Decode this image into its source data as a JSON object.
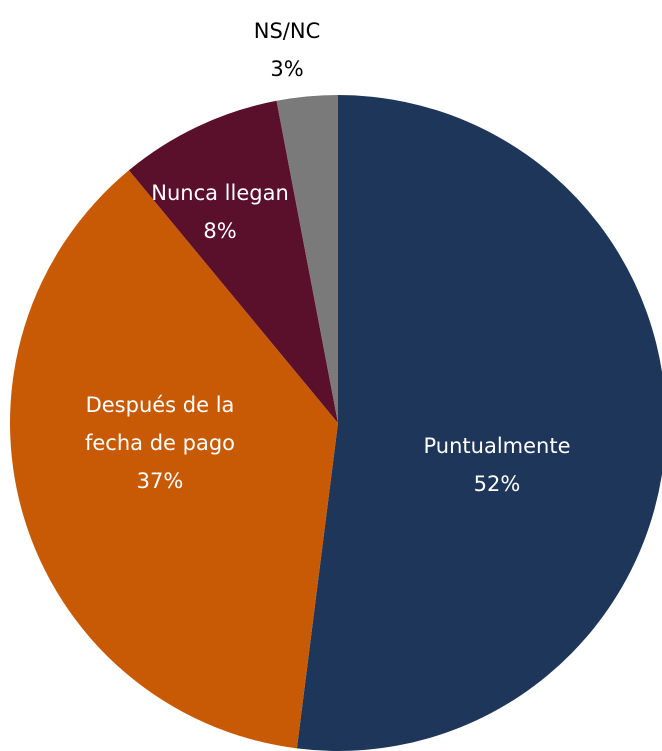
{
  "chart_data": {
    "type": "pie",
    "categories": [
      "Puntualmente",
      "Después de la fecha de pago",
      "Nunca llegan",
      "NS/NC"
    ],
    "values": [
      52,
      37,
      8,
      3
    ],
    "value_labels": [
      "52%",
      "37%",
      "8%",
      "3%"
    ],
    "colors": [
      "#1d3659",
      "#c85a05",
      "#5a0f2b",
      "#7a7a7a"
    ]
  }
}
